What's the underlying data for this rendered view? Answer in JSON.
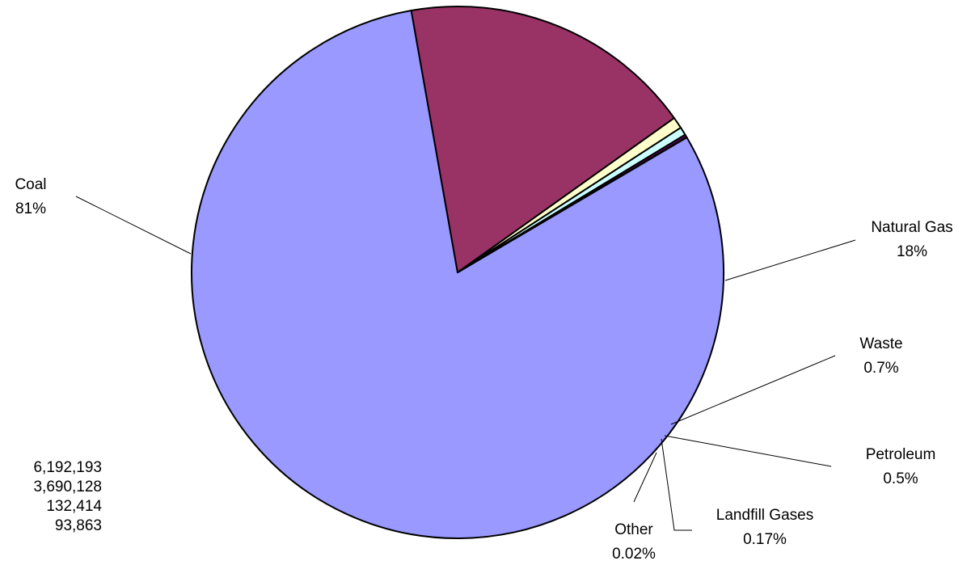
{
  "chart_data": {
    "type": "pie",
    "title": "",
    "slices": [
      {
        "name": "Coal",
        "label": "81%",
        "value": 81,
        "color": "#9999ff"
      },
      {
        "name": "Natural Gas",
        "label": "18%",
        "value": 18,
        "color": "#993366"
      },
      {
        "name": "Waste",
        "label": "0.7%",
        "value": 0.7,
        "color": "#ffffcc"
      },
      {
        "name": "Petroleum",
        "label": "0.5%",
        "value": 0.5,
        "color": "#ccffff"
      },
      {
        "name": "Landfill Gases",
        "label": "0.17%",
        "value": 0.17,
        "color": "#660066"
      },
      {
        "name": "Other",
        "label": "0.02%",
        "value": 0.02,
        "color": "#ff8080"
      }
    ]
  },
  "side_values": [
    "6,192,193",
    "3,690,128",
    "132,414",
    "93,863"
  ]
}
